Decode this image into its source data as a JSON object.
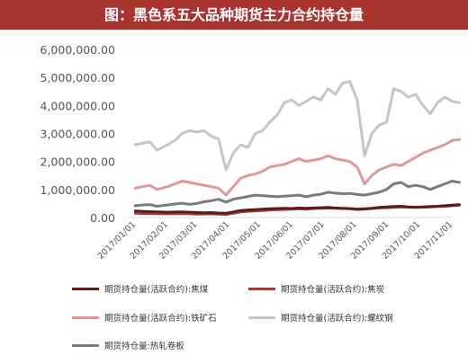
{
  "title": "图：黑色系五大品种期货主力合约持仓量",
  "chart_data": {
    "type": "line",
    "title": "图：黑色系五大品种期货主力合约持仓量",
    "ylim": [
      0,
      6000000
    ],
    "y_ticks": [
      "0.00",
      "1,000,000.00",
      "2,000,000.00",
      "3,000,000.00",
      "4,000,000.00",
      "5,000,000.00",
      "6,000,000.00"
    ],
    "x_ticks": [
      "2017/01/01",
      "2017/02/01",
      "2017/03/01",
      "2017/04/01",
      "2017/05/01",
      "2017/06/01",
      "2017/07/01",
      "2017/08/01",
      "2017/09/01",
      "2017/10/01",
      "2017/11/01"
    ],
    "x": [
      "2017/01/03",
      "2017/01/10",
      "2017/01/17",
      "2017/01/24",
      "2017/02/03",
      "2017/02/10",
      "2017/02/17",
      "2017/02/24",
      "2017/03/03",
      "2017/03/10",
      "2017/03/17",
      "2017/03/24",
      "2017/03/31",
      "2017/04/07",
      "2017/04/14",
      "2017/04/21",
      "2017/04/28",
      "2017/05/05",
      "2017/05/12",
      "2017/05/19",
      "2017/05/26",
      "2017/06/02",
      "2017/06/09",
      "2017/06/16",
      "2017/06/23",
      "2017/06/30",
      "2017/07/07",
      "2017/07/14",
      "2017/07/21",
      "2017/07/28",
      "2017/08/04",
      "2017/08/11",
      "2017/08/18",
      "2017/08/25",
      "2017/09/01",
      "2017/09/08",
      "2017/09/15",
      "2017/09/22",
      "2017/09/29",
      "2017/10/06",
      "2017/10/13",
      "2017/10/20",
      "2017/10/27",
      "2017/11/03",
      "2017/11/10"
    ],
    "series": [
      {
        "name": "期货持仓量(活跃合约):焦煤",
        "color": "#5a1d1d",
        "values": [
          230000,
          220000,
          210000,
          200000,
          190000,
          195000,
          200000,
          190000,
          180000,
          170000,
          175000,
          160000,
          150000,
          200000,
          250000,
          270000,
          280000,
          300000,
          310000,
          320000,
          330000,
          320000,
          340000,
          330000,
          340000,
          350000,
          360000,
          340000,
          330000,
          320000,
          300000,
          310000,
          330000,
          360000,
          380000,
          390000,
          400000,
          380000,
          370000,
          380000,
          390000,
          400000,
          420000,
          440000,
          460000
        ]
      },
      {
        "name": "期货持仓量(活跃合约):焦炭",
        "color": "#a83a35",
        "values": [
          150000,
          145000,
          140000,
          135000,
          130000,
          135000,
          140000,
          130000,
          120000,
          125000,
          130000,
          120000,
          110000,
          150000,
          200000,
          220000,
          230000,
          250000,
          270000,
          280000,
          290000,
          300000,
          310000,
          300000,
          320000,
          330000,
          340000,
          330000,
          320000,
          310000,
          290000,
          300000,
          320000,
          340000,
          350000,
          360000,
          380000,
          370000,
          360000,
          370000,
          380000,
          390000,
          400000,
          420000,
          440000
        ]
      },
      {
        "name": "期货持仓量(活跃合约):铁矿石",
        "color": "#e0999b",
        "values": [
          1050000,
          1100000,
          1150000,
          1000000,
          1100000,
          1200000,
          1300000,
          1250000,
          1200000,
          1150000,
          1100000,
          1050000,
          800000,
          1100000,
          1400000,
          1500000,
          1550000,
          1650000,
          1800000,
          1850000,
          1900000,
          2000000,
          2100000,
          2000000,
          2050000,
          2100000,
          2200000,
          2100000,
          2050000,
          2000000,
          1800000,
          1200000,
          1500000,
          1700000,
          1800000,
          1900000,
          1850000,
          2000000,
          2150000,
          2300000,
          2400000,
          2500000,
          2600000,
          2750000,
          2780000
        ]
      },
      {
        "name": "期货持仓量(活跃合约):螺纹钢",
        "color": "#c6c6c6",
        "values": [
          2600000,
          2650000,
          2700000,
          2400000,
          2600000,
          2750000,
          3000000,
          3100000,
          3050000,
          3100000,
          2900000,
          2800000,
          1700000,
          2300000,
          2600000,
          2500000,
          3000000,
          3100000,
          3400000,
          3650000,
          4100000,
          4200000,
          4000000,
          4150000,
          4300000,
          4200000,
          4600000,
          4400000,
          4800000,
          4850000,
          4200000,
          2200000,
          3000000,
          3300000,
          3400000,
          4600000,
          4500000,
          4300000,
          4400000,
          4000000,
          3700000,
          4100000,
          4300000,
          4150000,
          4100000
        ]
      },
      {
        "name": "期货持仓量:热轧卷板",
        "color": "#7b7b7b",
        "values": [
          420000,
          450000,
          460000,
          400000,
          450000,
          480000,
          510000,
          470000,
          500000,
          560000,
          600000,
          650000,
          550000,
          650000,
          700000,
          750000,
          800000,
          780000,
          760000,
          740000,
          760000,
          780000,
          800000,
          740000,
          800000,
          830000,
          900000,
          870000,
          850000,
          860000,
          820000,
          800000,
          850000,
          900000,
          1000000,
          1200000,
          1250000,
          1100000,
          1150000,
          1100000,
          1000000,
          1100000,
          1200000,
          1300000,
          1250000
        ]
      }
    ]
  }
}
